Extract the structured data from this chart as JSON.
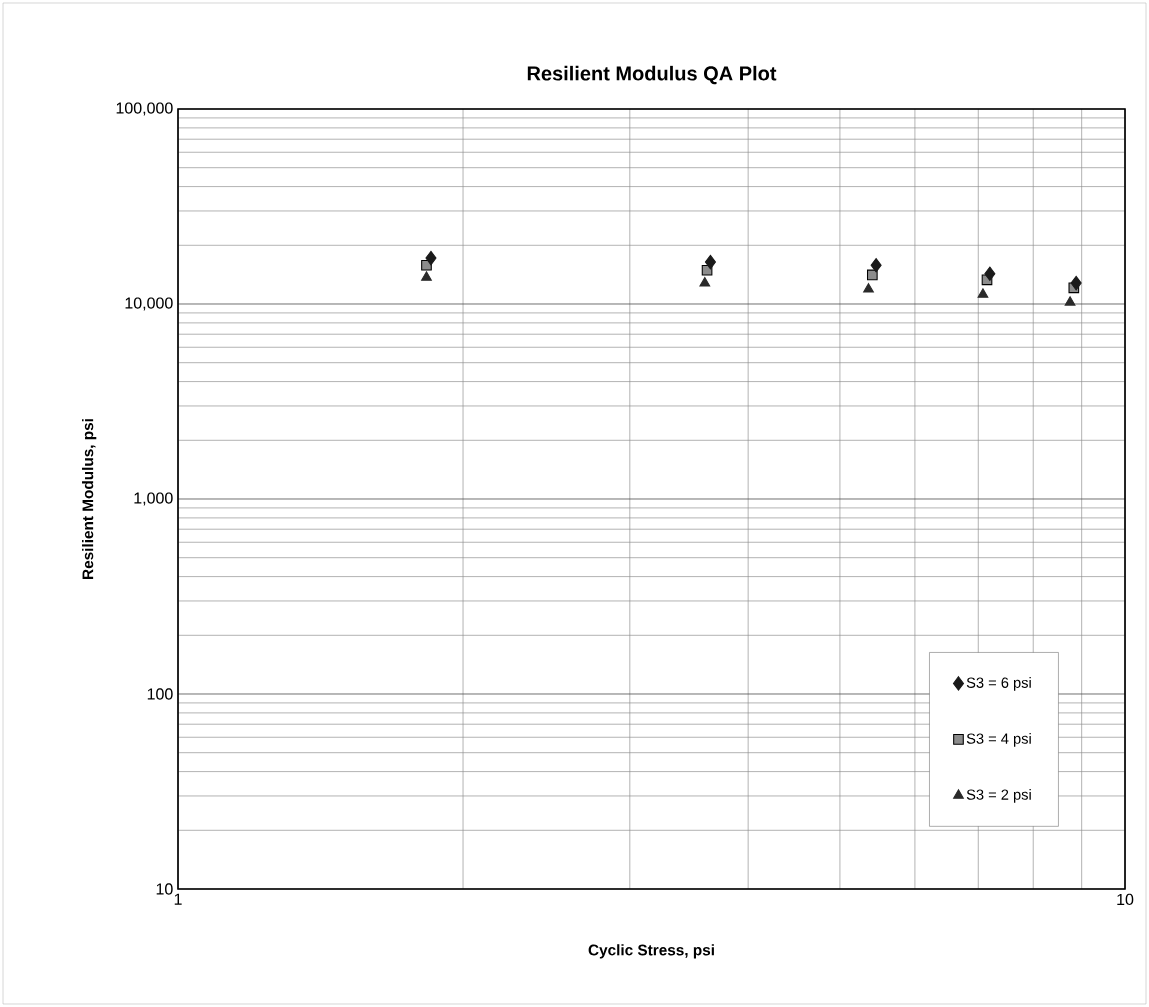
{
  "chart_data": {
    "type": "scatter",
    "title": "Resilient Modulus QA Plot",
    "xlabel": "Cyclic Stress,  psi",
    "ylabel": "Resilient Modulus,  psi",
    "log": "xy",
    "grid": true,
    "legend": "bottom right",
    "xlim": [
      1,
      10
    ],
    "xticks": [
      1,
      10
    ],
    "ylim": [
      10,
      100000
    ],
    "yticks": [
      10,
      100,
      {
        "value": 1000,
        "label": "1,000"
      },
      {
        "value": 10000,
        "label": "10,000"
      },
      {
        "value": 100000,
        "label": "100,000"
      }
    ],
    "series": [
      {
        "name": "S3  = 6 psi",
        "color": "#1a1a1a",
        "marker": "diamond",
        "x": [
          1.85,
          3.65,
          5.46,
          7.2,
          8.88
        ],
        "values": [
          17200,
          16400,
          15800,
          14300,
          12800
        ]
      },
      {
        "name": "S3  = 4 psi",
        "color": "#8c8c8c",
        "marker": "square",
        "x": [
          1.83,
          3.62,
          5.41,
          7.15,
          8.83
        ],
        "values": [
          15800,
          14900,
          14100,
          13300,
          12100
        ]
      },
      {
        "name": "S3  = 2 psi",
        "color": "#2a2a2a",
        "marker": "triangle",
        "x": [
          1.83,
          3.6,
          5.36,
          7.08,
          8.75
        ],
        "values": [
          13700,
          12800,
          11900,
          11200,
          10200
        ]
      }
    ]
  }
}
